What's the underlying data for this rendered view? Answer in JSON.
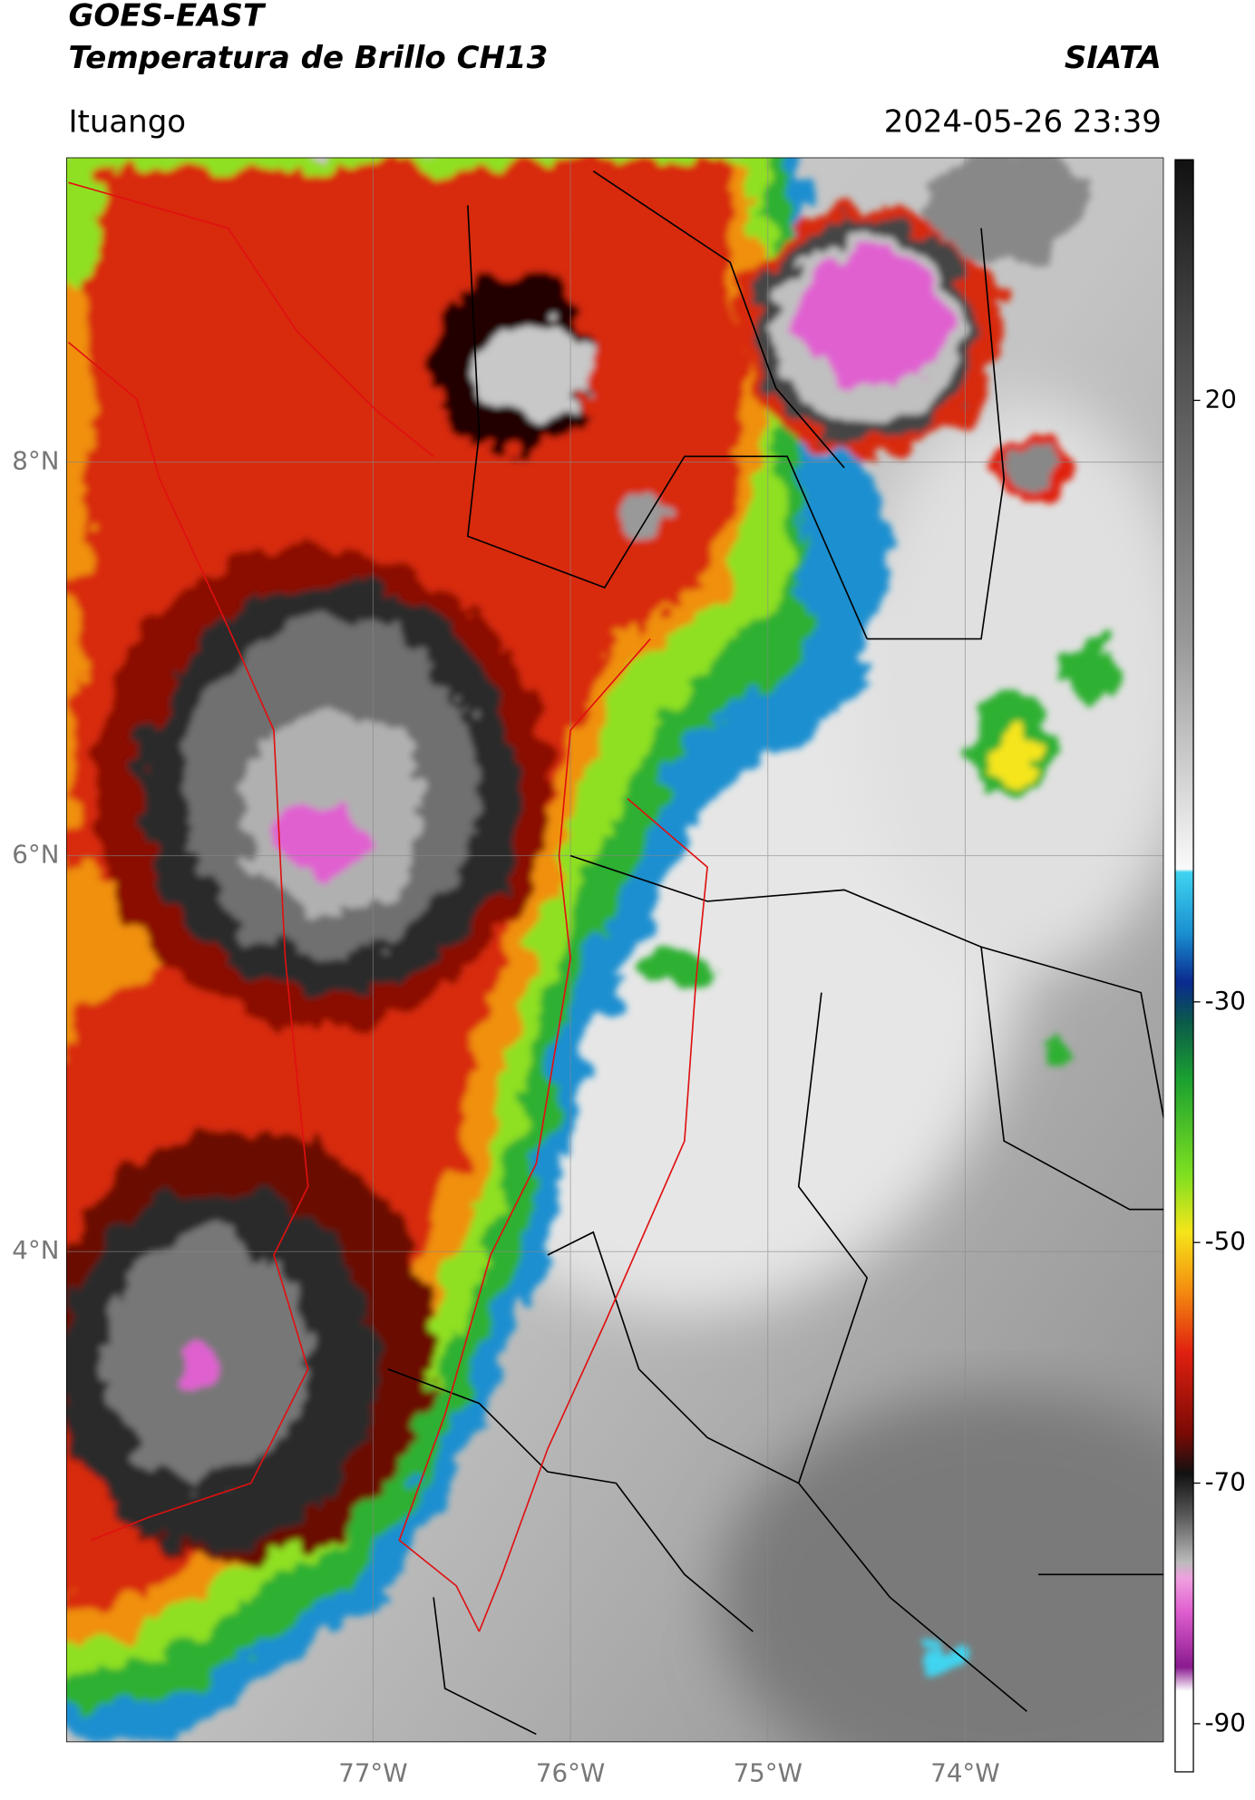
{
  "header": {
    "title": "GOES-EAST",
    "subtitle": "Temperatura de Brillo CH13",
    "organization": "SIATA",
    "location": "Ituango",
    "datetime": "2024-05-26 23:39"
  },
  "map": {
    "lat_labels": [
      "8°N",
      "6°N",
      "4°N"
    ],
    "lon_labels": [
      "77°W",
      "76°W",
      "75°W",
      "74°W"
    ]
  },
  "colorbar": {
    "range": [
      -94,
      40
    ],
    "ticks": [
      20,
      -30,
      -50,
      -70,
      -90
    ]
  }
}
